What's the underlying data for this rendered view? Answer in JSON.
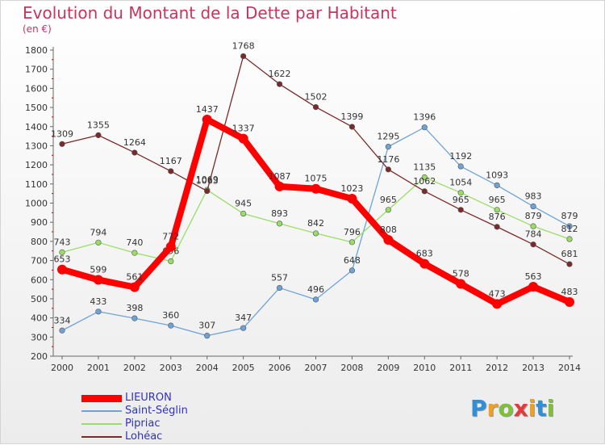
{
  "chart_data": {
    "type": "line",
    "title": "Evolution du Montant de la Dette par Habitant",
    "unit_label": "(en €)",
    "x": [
      "2000",
      "2001",
      "2002",
      "2003",
      "2004",
      "2005",
      "2006",
      "2007",
      "2008",
      "2009",
      "2010",
      "2011",
      "2012",
      "2013",
      "2014"
    ],
    "ylim": [
      200,
      1800
    ],
    "yticks": [
      200,
      300,
      400,
      500,
      600,
      700,
      800,
      900,
      1000,
      1100,
      1200,
      1300,
      1400,
      1500,
      1600,
      1700,
      1800
    ],
    "grid": false,
    "legend_position": "bottom-left",
    "series": [
      {
        "name": "LIEURON",
        "color": "#ff0000",
        "values": [
          653,
          599,
          561,
          772,
          1437,
          1337,
          1087,
          1075,
          1023,
          808,
          683,
          578,
          473,
          563,
          483
        ]
      },
      {
        "name": "Saint-Séglin",
        "color": "#6ea3d8",
        "values": [
          334,
          433,
          398,
          360,
          307,
          347,
          557,
          496,
          648,
          1295,
          1396,
          1192,
          1093,
          983,
          879
        ]
      },
      {
        "name": "Pipriac",
        "color": "#99dd66",
        "values": [
          743,
          794,
          740,
          696,
          1069,
          945,
          893,
          842,
          796,
          965,
          1135,
          1054,
          965,
          879,
          812
        ]
      },
      {
        "name": "Lohéac",
        "color": "#7a2a2a",
        "values": [
          1309,
          1355,
          1264,
          1167,
          1063,
          1768,
          1622,
          1502,
          1399,
          1176,
          1062,
          965,
          876,
          784,
          681
        ]
      }
    ]
  },
  "brand": {
    "letters": [
      "P",
      "r",
      "o",
      "x",
      "i",
      "t",
      "i"
    ],
    "colors": [
      "#2f8fd8",
      "#f0a020",
      "#7fc03a",
      "#e23b3b",
      "#f0a020",
      "#2f8fd8",
      "#7fc03a"
    ]
  }
}
